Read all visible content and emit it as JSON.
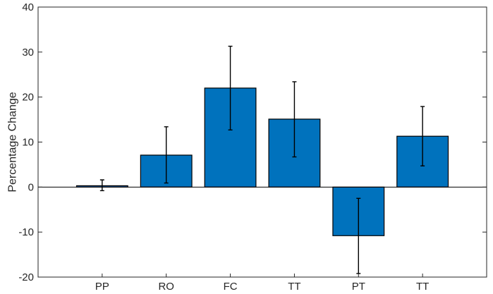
{
  "chart_data": {
    "type": "bar",
    "title": "",
    "xlabel": "",
    "ylabel": "Percentage Change",
    "categories": [
      "PP",
      "RO",
      "FC",
      "TT",
      "PT",
      "TT"
    ],
    "values": [
      0.3,
      7.1,
      22.0,
      15.1,
      -10.8,
      11.3
    ],
    "error_low": [
      -0.8,
      0.9,
      12.7,
      6.7,
      -19.2,
      4.7
    ],
    "error_high": [
      1.6,
      13.4,
      31.3,
      23.4,
      -2.5,
      17.9
    ],
    "ylim": [
      -20,
      40
    ],
    "yticks": [
      -20,
      -10,
      0,
      10,
      20,
      30,
      40
    ],
    "grid": false,
    "legend": "none",
    "colors": {
      "bar": "#0072BD",
      "edge": "#000000",
      "axis": "#262626"
    }
  }
}
